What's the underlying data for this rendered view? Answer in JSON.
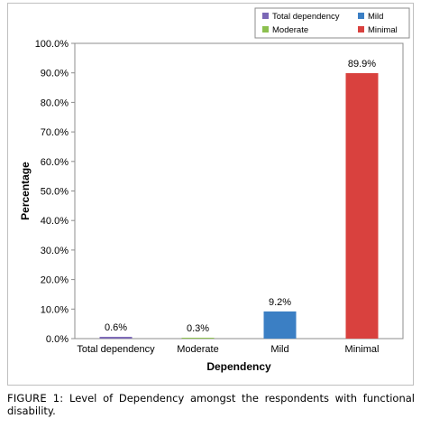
{
  "chart_data": {
    "type": "bar",
    "categories": [
      "Total dependency",
      "Moderate",
      "Mild",
      "Minimal"
    ],
    "values": [
      0.6,
      0.3,
      9.2,
      89.9
    ],
    "data_labels": [
      "0.6%",
      "0.3%",
      "9.2%",
      "89.9%"
    ],
    "colors": [
      "#7b68b6",
      "#8cc04f",
      "#3b7fc4",
      "#d9413e"
    ],
    "xlabel": "Dependency",
    "ylabel": "Percentage",
    "ylim": [
      0,
      100
    ],
    "yticks": [
      0,
      10,
      20,
      30,
      40,
      50,
      60,
      70,
      80,
      90,
      100
    ],
    "ytick_labels": [
      "0.0%",
      "10.0%",
      "20.0%",
      "30.0%",
      "40.0%",
      "50.0%",
      "60.0%",
      "70.0%",
      "80.0%",
      "90.0%",
      "100.0%"
    ],
    "grid": false,
    "legend": {
      "placement": "top-right",
      "entries": [
        "Total dependency",
        "Mild",
        "Moderate",
        "Minimal"
      ]
    }
  },
  "caption": {
    "label": "FIGURE 1:",
    "text": "Level of Dependency amongst the respondents with functional disability."
  }
}
